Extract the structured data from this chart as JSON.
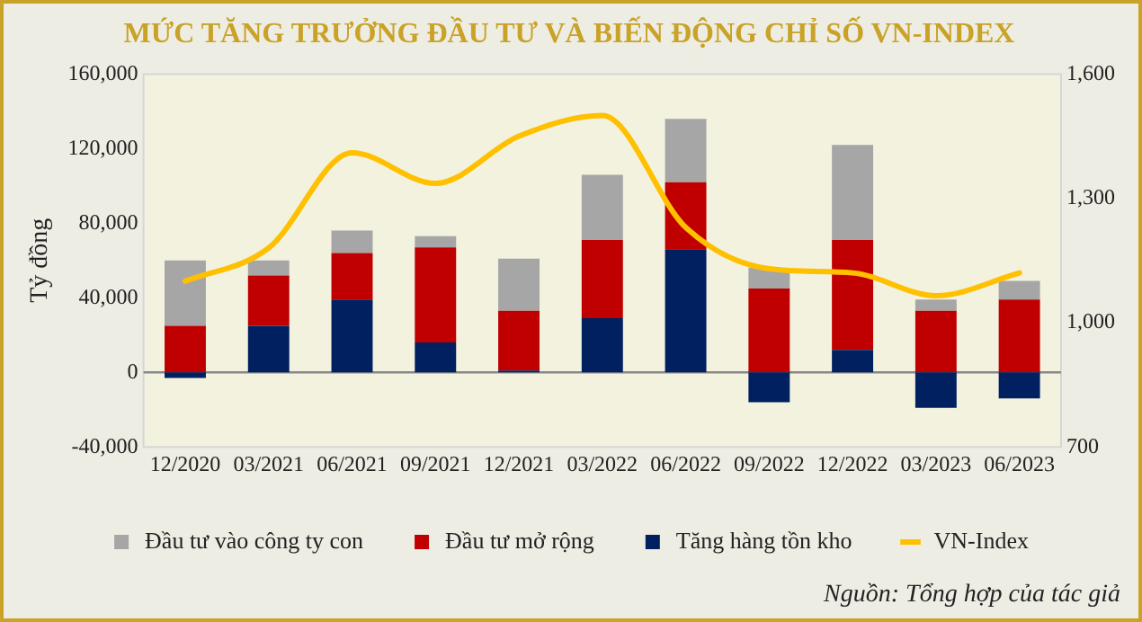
{
  "chart_data": {
    "type": "bar",
    "title": "MỨC TĂNG TRƯỞNG ĐẦU TƯ VÀ BIẾN ĐỘNG CHỈ SỐ VN-INDEX",
    "ylabel": "Tỷ đồng",
    "categories": [
      "12/2020",
      "03/2021",
      "06/2021",
      "09/2021",
      "12/2021",
      "03/2022",
      "06/2022",
      "09/2022",
      "12/2022",
      "03/2023",
      "06/2023"
    ],
    "stacked": true,
    "series": [
      {
        "name": "Tăng hàng tồn kho",
        "color": "#002060",
        "values": [
          -3000,
          25000,
          39000,
          16000,
          1000,
          29000,
          66000,
          -16000,
          12000,
          -19000,
          -14000
        ]
      },
      {
        "name": "Đầu tư mở rộng",
        "color": "#c00000",
        "values": [
          25000,
          27000,
          25000,
          51000,
          32000,
          42000,
          36000,
          45000,
          59000,
          33000,
          39000
        ]
      },
      {
        "name": "Đầu tư vào công ty con",
        "color": "#a6a6a6",
        "values": [
          35000,
          8000,
          12000,
          6000,
          28000,
          35000,
          34000,
          11000,
          51000,
          6000,
          10000
        ]
      },
      {
        "name": "VN-Index",
        "type": "line",
        "axis": "y2",
        "color": "#ffc000",
        "values": [
          1100,
          1180,
          1410,
          1336,
          1450,
          1500,
          1230,
          1130,
          1120,
          1065,
          1120
        ]
      }
    ],
    "ylim": [
      -40000,
      160000
    ],
    "yticks": [
      {
        "value": -40000,
        "label": "-40,000"
      },
      {
        "value": 0,
        "label": "0"
      },
      {
        "value": 40000,
        "label": "40,000"
      },
      {
        "value": 80000,
        "label": "80,000"
      },
      {
        "value": 120000,
        "label": "120,000"
      },
      {
        "value": 160000,
        "label": "160,000"
      }
    ],
    "y2lim": [
      700,
      1600
    ],
    "y2ticks": [
      {
        "value": 700,
        "label": "700"
      },
      {
        "value": 1000,
        "label": "1,000"
      },
      {
        "value": 1300,
        "label": "1,300"
      },
      {
        "value": 1600,
        "label": "1,600"
      }
    ],
    "ref_lines": [
      {
        "axis": "y",
        "value": 0,
        "color": "#888888"
      }
    ],
    "grid": false,
    "legend": "bottom",
    "marker": "none",
    "annotations": [
      "Nguồn: Tổng hợp của tác giả"
    ]
  }
}
